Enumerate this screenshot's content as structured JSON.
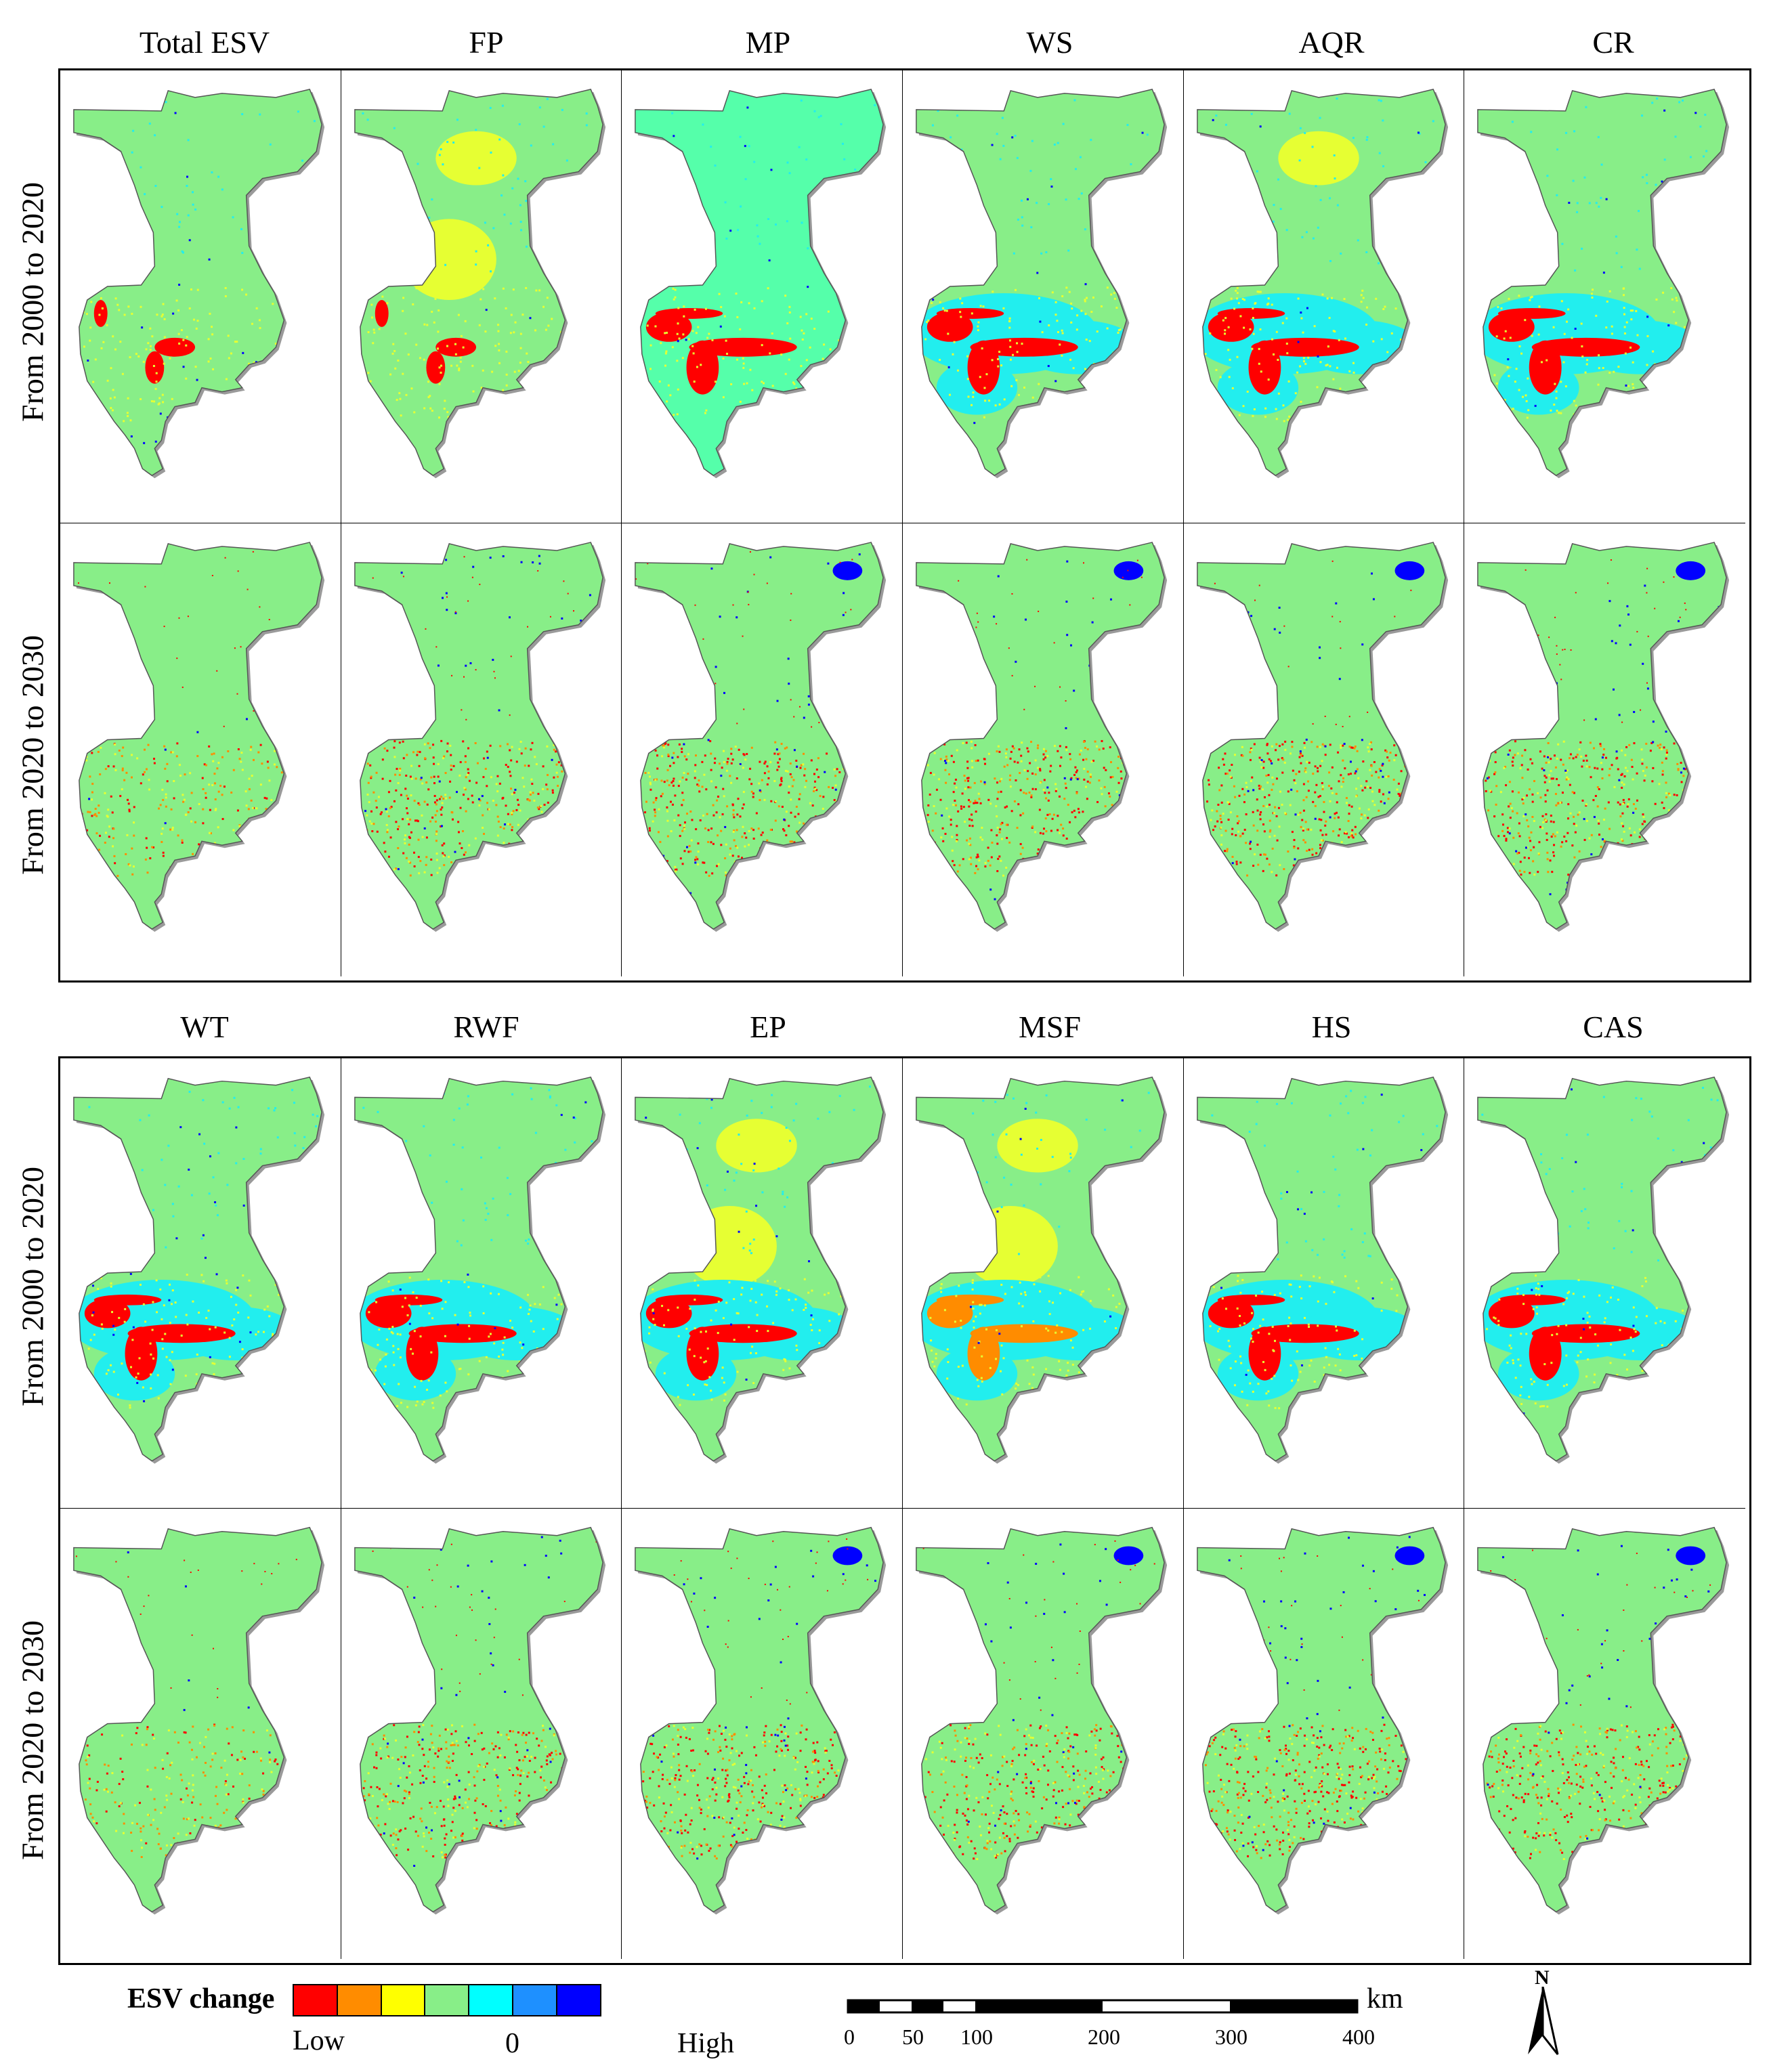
{
  "panels_top": {
    "columns": [
      "Total ESV",
      "FP",
      "MP",
      "WS",
      "AQR",
      "CR"
    ],
    "rows": [
      "From 2000 to 2020",
      "From 2020 to 2030"
    ]
  },
  "panels_bottom": {
    "columns": [
      "WT",
      "RWF",
      "EP",
      "MSF",
      "HS",
      "CAS"
    ],
    "rows": [
      "From 2000 to 2020",
      "From 2020 to 2030"
    ]
  },
  "legend": {
    "title": "ESV change",
    "low": "Low",
    "zero": "0",
    "high": "High",
    "colors": [
      "#ff0000",
      "#ff8c00",
      "#ffff00",
      "#88ee88",
      "#00ffff",
      "#1e90ff",
      "#0000ff"
    ]
  },
  "scale_bar": {
    "ticks": [
      "0",
      "50",
      "100",
      "200",
      "300",
      "400"
    ],
    "unit": "km"
  },
  "north_arrow": {
    "label": "N"
  },
  "map_style": {
    "base": "#88ee88",
    "light": "#99ff77",
    "red": "#ff0000",
    "orange": "#ff8c00",
    "yellow": "#e6ff33",
    "cyan": "#22eeee",
    "blue": "#0000ff",
    "sea": "#55ffaa"
  }
}
